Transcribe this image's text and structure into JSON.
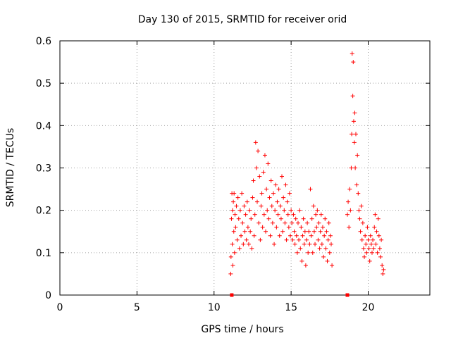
{
  "chart_data": {
    "type": "scatter",
    "title": "Day 130 of 2015, SRMTID for receiver orid",
    "xlabel": "GPS time / hours",
    "ylabel": "SRMTID / TECUs",
    "xlim": [
      0,
      24
    ],
    "ylim": [
      0,
      0.6
    ],
    "xticks": [
      0,
      5,
      10,
      15,
      20
    ],
    "yticks": [
      0,
      0.1,
      0.2,
      0.3,
      0.4,
      0.5,
      0.6
    ],
    "ytick_labels": [
      "0",
      "0.1",
      "0.2",
      "0.3",
      "0.4",
      "0.5",
      "0.6"
    ],
    "grid": true,
    "marker": "+",
    "series_color": "#ff0000",
    "series": [
      {
        "name": "SRMTID",
        "x": [
          11.08,
          11.1,
          11.13,
          11.16,
          11.18,
          11.2,
          11.22,
          11.25,
          11.28,
          11.3,
          11.33,
          11.36,
          11.4,
          11.45,
          11.5,
          11.55,
          11.6,
          11.65,
          11.7,
          11.75,
          11.8,
          11.85,
          11.9,
          11.95,
          12.0,
          12.05,
          12.1,
          12.15,
          12.2,
          12.25,
          12.3,
          12.35,
          12.4,
          12.45,
          12.5,
          12.55,
          12.6,
          12.65,
          12.7,
          12.75,
          12.8,
          12.85,
          12.9,
          12.95,
          13.0,
          13.05,
          13.1,
          13.15,
          13.2,
          13.25,
          13.3,
          13.35,
          13.4,
          13.45,
          13.5,
          13.55,
          13.6,
          13.65,
          13.7,
          13.75,
          13.8,
          13.85,
          13.9,
          13.95,
          14.0,
          14.05,
          14.1,
          14.15,
          14.2,
          14.25,
          14.3,
          14.35,
          14.4,
          14.45,
          14.5,
          14.55,
          14.6,
          14.65,
          14.7,
          14.75,
          14.8,
          14.85,
          14.9,
          14.95,
          15.0,
          15.05,
          15.1,
          15.15,
          15.2,
          15.25,
          15.3,
          15.35,
          15.4,
          15.45,
          15.5,
          15.55,
          15.6,
          15.65,
          15.7,
          15.75,
          15.8,
          15.85,
          15.9,
          15.95,
          16.0,
          16.05,
          16.1,
          16.15,
          16.2,
          16.25,
          16.3,
          16.35,
          16.4,
          16.45,
          16.5,
          16.55,
          16.6,
          16.65,
          16.7,
          16.75,
          16.8,
          16.85,
          16.9,
          16.95,
          17.0,
          17.05,
          17.1,
          17.15,
          17.2,
          17.25,
          17.3,
          17.35,
          17.4,
          17.45,
          17.5,
          17.55,
          17.6,
          17.65,
          18.65,
          18.7,
          18.75,
          18.8,
          18.85,
          18.9,
          18.93,
          18.96,
          19.0,
          19.03,
          19.06,
          19.1,
          19.13,
          19.16,
          19.2,
          19.25,
          19.3,
          19.35,
          19.4,
          19.45,
          19.5,
          19.55,
          19.6,
          19.65,
          19.7,
          19.75,
          19.8,
          19.85,
          19.9,
          19.95,
          20.0,
          20.05,
          20.1,
          20.15,
          20.2,
          20.25,
          20.3,
          20.35,
          20.4,
          20.45,
          20.5,
          20.55,
          20.6,
          20.65,
          20.7,
          20.75,
          20.8,
          20.85,
          20.9,
          20.95,
          21.0
        ],
        "y": [
          0.05,
          0.09,
          0.18,
          0.24,
          0.12,
          0.2,
          0.07,
          0.22,
          0.15,
          0.24,
          0.1,
          0.19,
          0.16,
          0.21,
          0.13,
          0.23,
          0.18,
          0.11,
          0.2,
          0.14,
          0.24,
          0.17,
          0.12,
          0.21,
          0.15,
          0.19,
          0.13,
          0.22,
          0.16,
          0.12,
          0.2,
          0.15,
          0.18,
          0.11,
          0.23,
          0.27,
          0.14,
          0.19,
          0.36,
          0.3,
          0.22,
          0.34,
          0.17,
          0.28,
          0.13,
          0.21,
          0.24,
          0.16,
          0.29,
          0.19,
          0.33,
          0.15,
          0.25,
          0.2,
          0.31,
          0.18,
          0.23,
          0.14,
          0.27,
          0.21,
          0.17,
          0.24,
          0.12,
          0.2,
          0.26,
          0.16,
          0.22,
          0.19,
          0.25,
          0.14,
          0.21,
          0.18,
          0.28,
          0.15,
          0.23,
          0.2,
          0.17,
          0.26,
          0.13,
          0.22,
          0.19,
          0.16,
          0.24,
          0.14,
          0.2,
          0.17,
          0.13,
          0.19,
          0.15,
          0.12,
          0.18,
          0.14,
          0.1,
          0.17,
          0.13,
          0.2,
          0.11,
          0.16,
          0.08,
          0.14,
          0.18,
          0.12,
          0.15,
          0.07,
          0.13,
          0.17,
          0.1,
          0.15,
          0.12,
          0.25,
          0.14,
          0.18,
          0.1,
          0.21,
          0.15,
          0.12,
          0.19,
          0.16,
          0.2,
          0.13,
          0.17,
          0.11,
          0.15,
          0.19,
          0.12,
          0.16,
          0.09,
          0.14,
          0.18,
          0.11,
          0.15,
          0.08,
          0.13,
          0.17,
          0.1,
          0.14,
          0.12,
          0.07,
          0.19,
          0.22,
          0.16,
          0.25,
          0.2,
          0.3,
          0.38,
          0.57,
          0.47,
          0.55,
          0.41,
          0.36,
          0.43,
          0.3,
          0.38,
          0.26,
          0.33,
          0.24,
          0.2,
          0.18,
          0.15,
          0.21,
          0.13,
          0.17,
          0.11,
          0.09,
          0.14,
          0.12,
          0.1,
          0.16,
          0.13,
          0.11,
          0.08,
          0.14,
          0.12,
          0.1,
          0.13,
          0.11,
          0.16,
          0.19,
          0.12,
          0.15,
          0.1,
          0.18,
          0.14,
          0.11,
          0.09,
          0.13,
          0.07,
          0.05,
          0.06
        ]
      }
    ],
    "axis_markers": [
      {
        "x": 11.15,
        "y": 0
      },
      {
        "x": 18.65,
        "y": 0
      }
    ]
  }
}
